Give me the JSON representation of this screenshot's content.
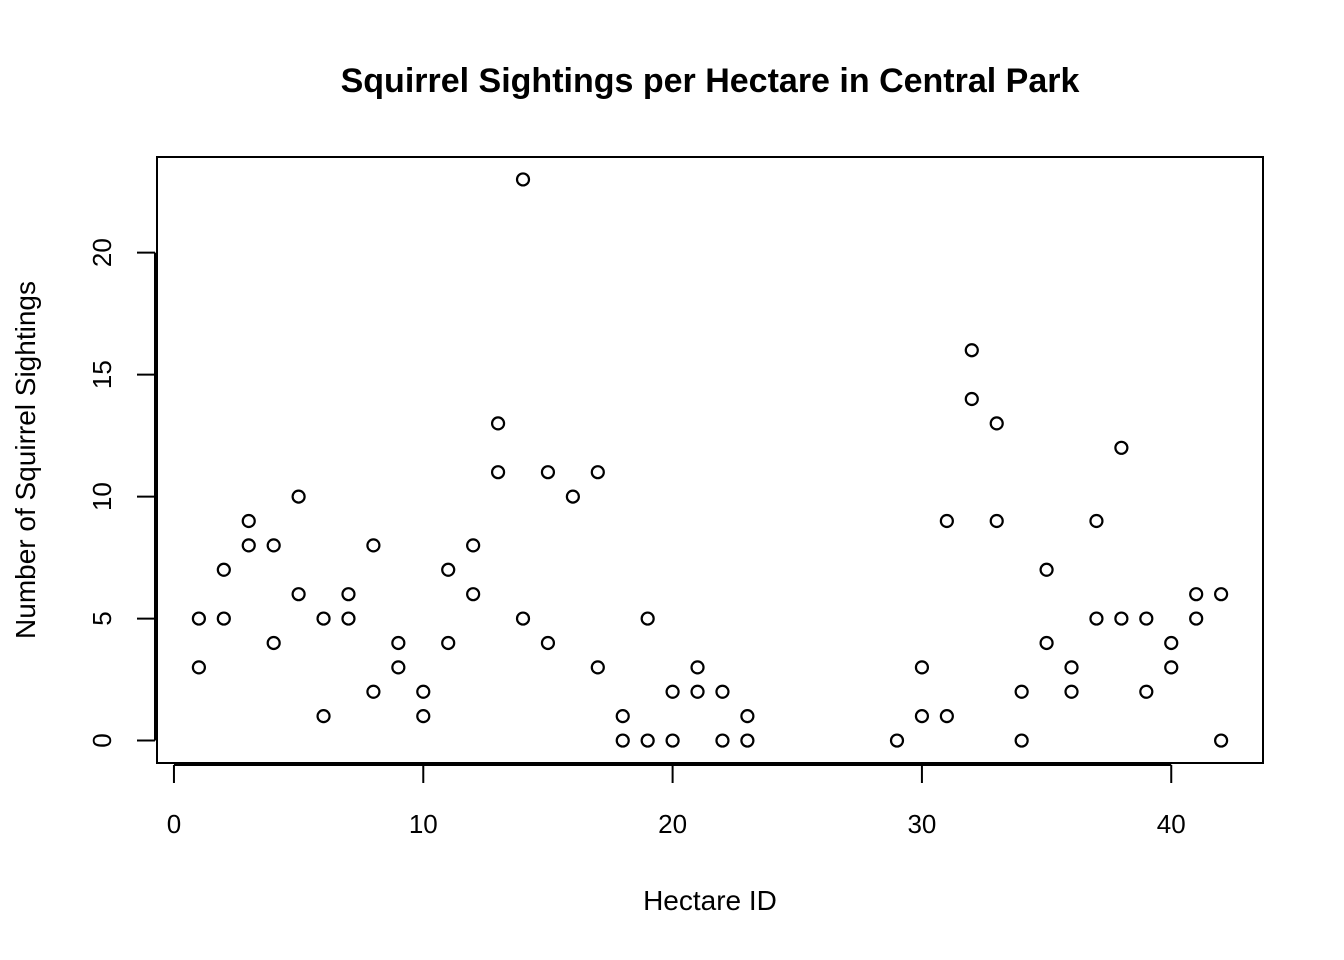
{
  "chart_data": {
    "type": "scatter",
    "title": "Squirrel Sightings per Hectare in Central Park",
    "xlabel": "Hectare ID",
    "ylabel": "Number of Squirrel Sightings",
    "xlim": [
      -0.68,
      43.68
    ],
    "ylim": [
      -0.92,
      23.92
    ],
    "x_ticks": [
      0,
      10,
      20,
      30,
      40
    ],
    "y_ticks": [
      0,
      5,
      10,
      15,
      20
    ],
    "grid": false,
    "legend": "none",
    "series": [
      {
        "points": [
          [
            1,
            5
          ],
          [
            1,
            3
          ],
          [
            2,
            7
          ],
          [
            2,
            5
          ],
          [
            3,
            9
          ],
          [
            3,
            8
          ],
          [
            4,
            8
          ],
          [
            4,
            4
          ],
          [
            5,
            10
          ],
          [
            5,
            6
          ],
          [
            6,
            5
          ],
          [
            6,
            1
          ],
          [
            7,
            6
          ],
          [
            7,
            5
          ],
          [
            8,
            8
          ],
          [
            8,
            2
          ],
          [
            9,
            4
          ],
          [
            9,
            3
          ],
          [
            10,
            2
          ],
          [
            10,
            1
          ],
          [
            11,
            7
          ],
          [
            11,
            4
          ],
          [
            12,
            8
          ],
          [
            12,
            6
          ],
          [
            13,
            13
          ],
          [
            13,
            11
          ],
          [
            14,
            23
          ],
          [
            14,
            5
          ],
          [
            15,
            11
          ],
          [
            15,
            4
          ],
          [
            16,
            10
          ],
          [
            17,
            11
          ],
          [
            17,
            3
          ],
          [
            18,
            1
          ],
          [
            18,
            0
          ],
          [
            19,
            5
          ],
          [
            19,
            0
          ],
          [
            20,
            2
          ],
          [
            20,
            0
          ],
          [
            21,
            3
          ],
          [
            21,
            2
          ],
          [
            22,
            2
          ],
          [
            22,
            0
          ],
          [
            23,
            1
          ],
          [
            23,
            0
          ],
          [
            29,
            0
          ],
          [
            30,
            3
          ],
          [
            30,
            1
          ],
          [
            31,
            9
          ],
          [
            31,
            1
          ],
          [
            32,
            16
          ],
          [
            32,
            14
          ],
          [
            33,
            13
          ],
          [
            33,
            9
          ],
          [
            34,
            2
          ],
          [
            34,
            0
          ],
          [
            35,
            7
          ],
          [
            35,
            4
          ],
          [
            36,
            3
          ],
          [
            36,
            2
          ],
          [
            37,
            9
          ],
          [
            37,
            5
          ],
          [
            38,
            12
          ],
          [
            38,
            5
          ],
          [
            39,
            5
          ],
          [
            39,
            2
          ],
          [
            40,
            4
          ],
          [
            40,
            3
          ],
          [
            41,
            6
          ],
          [
            41,
            5
          ],
          [
            42,
            6
          ],
          [
            42,
            0
          ]
        ]
      }
    ]
  }
}
